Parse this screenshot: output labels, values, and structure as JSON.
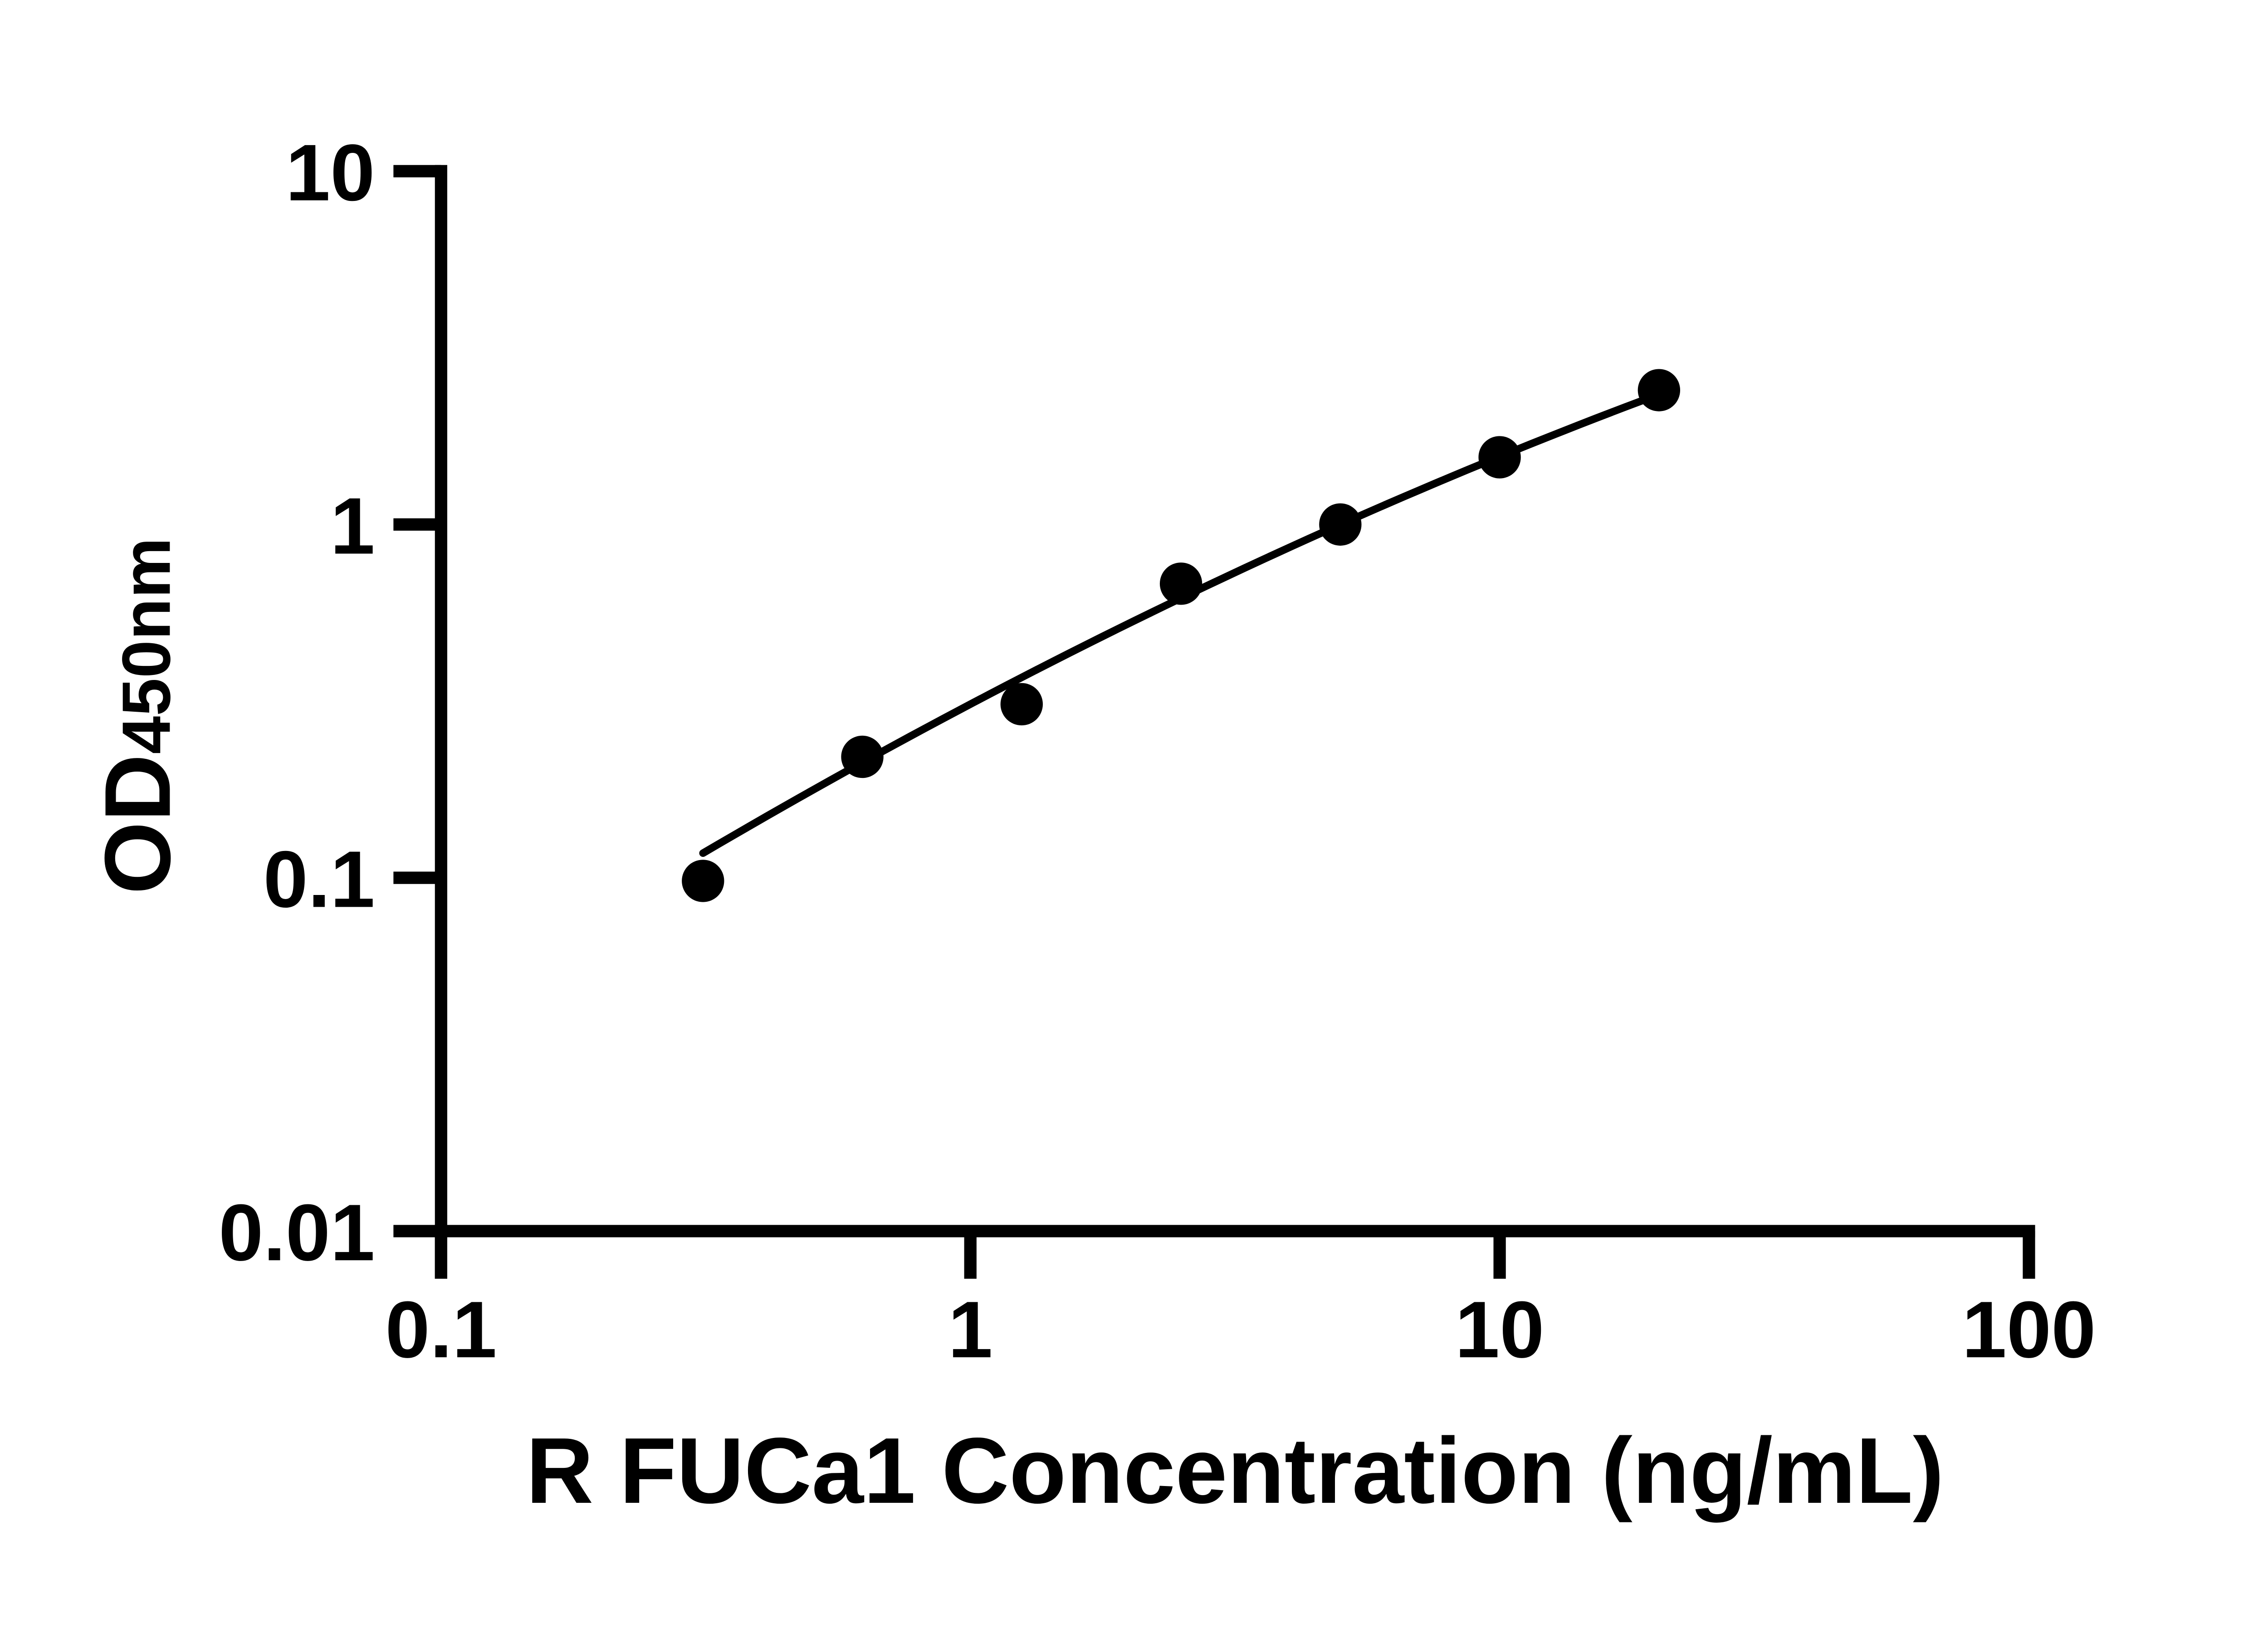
{
  "figure": {
    "background_color": "#ffffff",
    "ink_color": "#000000"
  },
  "chart_data": {
    "type": "scatter",
    "title": "",
    "xlabel": "R FUCa1 Concentration (ng/mL)",
    "ylabel_main": "OD",
    "ylabel_sub": "450nm",
    "x_scale": "log",
    "y_scale": "log",
    "xlim": [
      0.1,
      100
    ],
    "ylim": [
      0.01,
      10
    ],
    "x_tick_values": [
      0.1,
      1,
      10,
      100
    ],
    "x_tick_labels": [
      "0.1",
      "1",
      "10",
      "100"
    ],
    "y_tick_values": [
      10,
      1,
      0.1,
      0.01
    ],
    "y_tick_labels": [
      "10",
      "1",
      "0.1",
      "0.01"
    ],
    "grid": false,
    "legend": false,
    "series": [
      {
        "name": "standard-curve-points",
        "marker": "filled-circle",
        "color": "#000000",
        "x": [
          0.3125,
          0.625,
          1.25,
          2.5,
          5,
          10,
          20
        ],
        "y": [
          0.098,
          0.22,
          0.31,
          0.68,
          1.0,
          1.55,
          2.4
        ]
      }
    ],
    "fit_curve": {
      "model": "log10(OD) = a + b*u + c*u^2 where u = log10(concentration)",
      "a": -0.5086,
      "b": 0.7898,
      "c": -0.0889,
      "x_start": 0.3125,
      "x_end": 20
    }
  }
}
